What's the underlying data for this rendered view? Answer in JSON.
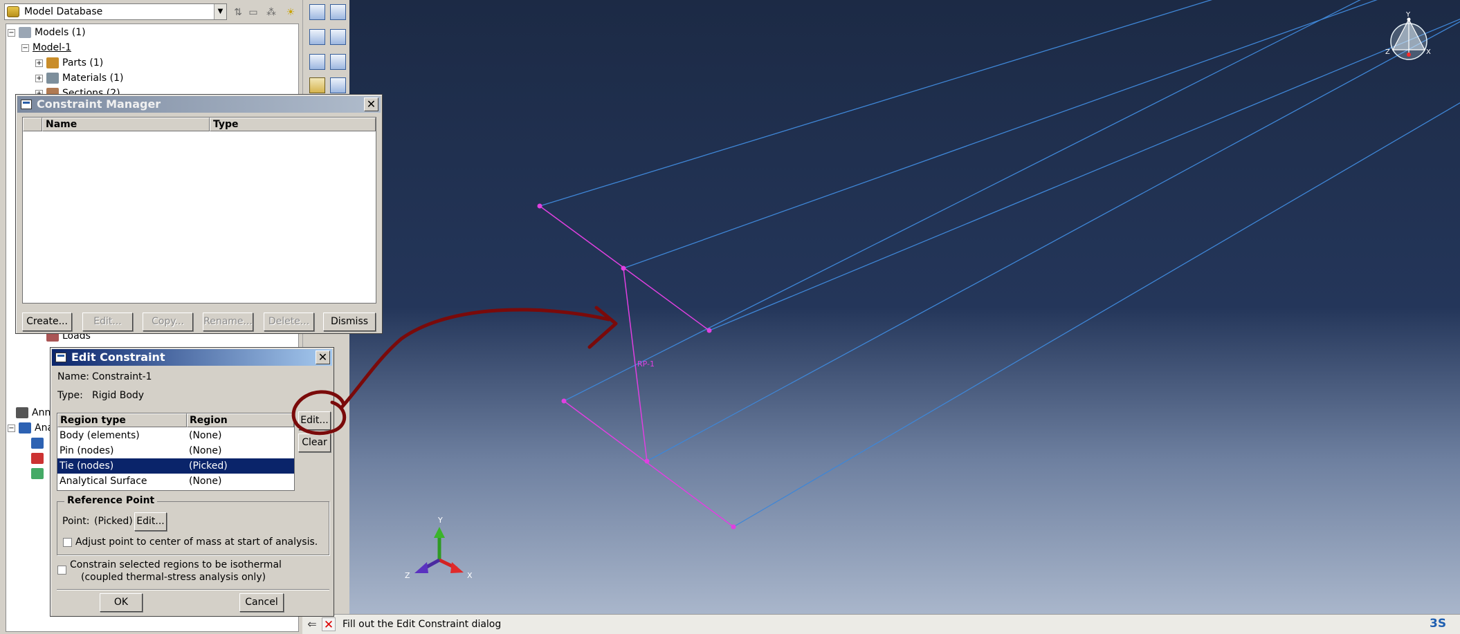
{
  "model_tree": {
    "database_label": "Model Database",
    "items": [
      {
        "label": "Models (1)",
        "expander": "−",
        "indent": 0
      },
      {
        "label": "Model-1",
        "expander": "−",
        "indent": 1
      },
      {
        "label": "Parts (1)",
        "expander": "+",
        "indent": 2
      },
      {
        "label": "Materials (1)",
        "expander": "+",
        "indent": 2
      },
      {
        "label": "Sections (2)",
        "expander": "+",
        "indent": 2
      }
    ],
    "obscured_items": [
      "Loads",
      "Ann",
      "Ana"
    ]
  },
  "constraint_manager": {
    "title": "Constraint Manager",
    "columns": [
      "Name",
      "Type"
    ],
    "buttons": {
      "create": "Create...",
      "edit": "Edit...",
      "copy": "Copy...",
      "rename": "Rename...",
      "delete": "Delete...",
      "dismiss": "Dismiss"
    }
  },
  "edit_constraint": {
    "title": "Edit Constraint",
    "name_label": "Name:",
    "name_value": "Constraint-1",
    "type_label": "Type:",
    "type_value": "Rigid Body",
    "table": {
      "columns": [
        "Region type",
        "Region"
      ],
      "rows": [
        {
          "type": "Body (elements)",
          "region": "(None)"
        },
        {
          "type": "Pin (nodes)",
          "region": "(None)"
        },
        {
          "type": "Tie (nodes)",
          "region": "(Picked)"
        },
        {
          "type": "Analytical Surface",
          "region": "(None)"
        }
      ],
      "selected_row": "Tie (nodes)"
    },
    "edit_button": "Edit...",
    "clear_button": "Clear",
    "reference_point": {
      "group_title": "Reference Point",
      "point_label": "Point:",
      "point_value": "(Picked)",
      "edit_button": "Edit...",
      "adjust_checkbox": "Adjust point to center of mass at start of analysis."
    },
    "isothermal_line1": "Constrain selected regions to be isothermal",
    "isothermal_line2": "(coupled thermal-stress analysis only)",
    "ok_button": "OK",
    "cancel_button": "Cancel"
  },
  "viewport": {
    "reference_point_label": "RP-1",
    "triad_labels": {
      "x": "X",
      "y": "Y",
      "z": "Z"
    },
    "compass_labels": {
      "x": "X",
      "y": "Y",
      "z": "Z"
    },
    "colors": {
      "edges": "#3f86d6",
      "rigid_body": "#e040e0",
      "annotation": "#7a0a0a"
    }
  },
  "status": {
    "message": "Fill out the Edit Constraint dialog"
  }
}
